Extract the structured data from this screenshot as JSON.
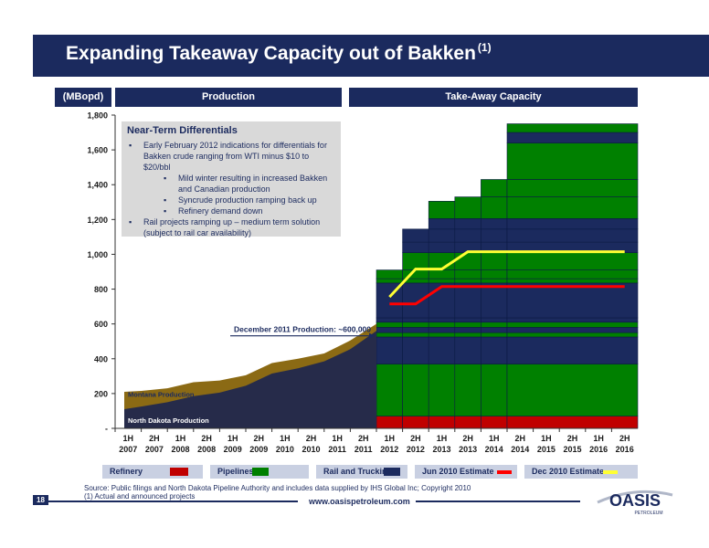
{
  "page": {
    "title": "Expanding Takeaway Capacity out of Bakken",
    "title_sup": "(1)",
    "unit_label": "(MBopd)",
    "section_production": "Production",
    "section_takeaway": "Take-Away Capacity",
    "page_number": "18",
    "website": "www.oasispetroleum.com",
    "source": "Source:  Public filings and North Dakota Pipeline Authority and includes data supplied by IHS Global Inc; Copyright 2010",
    "footnote": "(1)    Actual and announced projects",
    "logo_text": "OASIS",
    "logo_sub": "PETROLEUM"
  },
  "notes": {
    "title": "Near-Term Differentials",
    "items": [
      {
        "text": "Early February 2012 indications for differentials for",
        "level": 1,
        "bullet": true
      },
      {
        "text": "Bakken crude ranging from WTI minus $10 to",
        "level": 1,
        "bullet": false
      },
      {
        "text": "$20/bbl",
        "level": 1,
        "bullet": false
      },
      {
        "text": "Mild winter resulting in increased Bakken",
        "level": 2,
        "bullet": true
      },
      {
        "text": "and Canadian production",
        "level": 2,
        "bullet": false
      },
      {
        "text": "Syncrude production ramping back up",
        "level": 2,
        "bullet": true
      },
      {
        "text": "Refinery demand down",
        "level": 2,
        "bullet": true
      },
      {
        "text": "Rail projects ramping up – medium term solution",
        "level": 1,
        "bullet": true
      },
      {
        "text": "(subject to rail car availability)",
        "level": 1,
        "bullet": false
      }
    ]
  },
  "legend": [
    {
      "label": "Refinery",
      "color": "#c00000",
      "type": "box"
    },
    {
      "label": "Pipelines",
      "color": "#008000",
      "type": "box"
    },
    {
      "label": "Rail and Trucking",
      "color": "#1b2a5e",
      "type": "box"
    },
    {
      "label": "Jun 2010 Estimate",
      "color": "#ff0000",
      "type": "line"
    },
    {
      "label": "Dec 2010 Estimate",
      "color": "#ffff33",
      "type": "line"
    }
  ],
  "chart_data": {
    "type": "area",
    "ylim": [
      0,
      1800
    ],
    "yticks": [
      "-",
      "200",
      "400",
      "600",
      "800",
      "1,000",
      "1,200",
      "1,400",
      "1,600",
      "1,800"
    ],
    "categories": [
      [
        "1H",
        "2007"
      ],
      [
        "2H",
        "2007"
      ],
      [
        "1H",
        "2008"
      ],
      [
        "2H",
        "2008"
      ],
      [
        "1H",
        "2009"
      ],
      [
        "2H",
        "2009"
      ],
      [
        "1H",
        "2010"
      ],
      [
        "2H",
        "2010"
      ],
      [
        "1H",
        "2011"
      ],
      [
        "2H",
        "2011"
      ],
      [
        "1H",
        "2012"
      ],
      [
        "2H",
        "2012"
      ],
      [
        "1H",
        "2013"
      ],
      [
        "2H",
        "2013"
      ],
      [
        "1H",
        "2014"
      ],
      [
        "2H",
        "2014"
      ],
      [
        "1H",
        "2015"
      ],
      [
        "2H",
        "2015"
      ],
      [
        "1H",
        "2016"
      ],
      [
        "2H",
        "2016"
      ]
    ],
    "production": {
      "north_dakota": [
        110,
        125,
        150,
        185,
        205,
        245,
        315,
        345,
        385,
        455,
        560
      ],
      "montana": [
        210,
        215,
        230,
        265,
        275,
        305,
        375,
        400,
        430,
        505,
        600
      ],
      "north_dakota_label": "North Dakota Production",
      "montana_label": "Montana Production",
      "annotation": "December 2011 Production: ~600,000"
    },
    "capacity": [
      [
        [
          70,
          "#c00000"
        ],
        [
          300,
          "#008000"
        ],
        [
          155,
          "#1b2a5e"
        ],
        [
          25,
          "#008000"
        ],
        [
          30,
          "#1b2a5e"
        ],
        [
          30,
          "#008000"
        ],
        [
          25,
          "#1b2a5e"
        ],
        [
          200,
          "#1b2a5e"
        ],
        [
          25,
          "#008000"
        ],
        [
          50,
          "#008000"
        ]
      ],
      [
        [
          70,
          "#c00000"
        ],
        [
          300,
          "#008000"
        ],
        [
          155,
          "#1b2a5e"
        ],
        [
          25,
          "#008000"
        ],
        [
          30,
          "#1b2a5e"
        ],
        [
          30,
          "#008000"
        ],
        [
          25,
          "#1b2a5e"
        ],
        [
          200,
          "#1b2a5e"
        ],
        [
          25,
          "#008000"
        ],
        [
          50,
          "#008000"
        ],
        [
          100,
          "#008000"
        ],
        [
          60,
          "#1b2a5e"
        ],
        [
          75,
          "#1b2a5e"
        ]
      ],
      [
        [
          70,
          "#c00000"
        ],
        [
          300,
          "#008000"
        ],
        [
          155,
          "#1b2a5e"
        ],
        [
          25,
          "#008000"
        ],
        [
          30,
          "#1b2a5e"
        ],
        [
          30,
          "#008000"
        ],
        [
          25,
          "#1b2a5e"
        ],
        [
          200,
          "#1b2a5e"
        ],
        [
          25,
          "#008000"
        ],
        [
          50,
          "#008000"
        ],
        [
          100,
          "#008000"
        ],
        [
          60,
          "#1b2a5e"
        ],
        [
          75,
          "#1b2a5e"
        ],
        [
          60,
          "#1b2a5e"
        ],
        [
          100,
          "#008000"
        ]
      ],
      [
        [
          70,
          "#c00000"
        ],
        [
          300,
          "#008000"
        ],
        [
          155,
          "#1b2a5e"
        ],
        [
          25,
          "#008000"
        ],
        [
          30,
          "#1b2a5e"
        ],
        [
          30,
          "#008000"
        ],
        [
          25,
          "#1b2a5e"
        ],
        [
          200,
          "#1b2a5e"
        ],
        [
          25,
          "#008000"
        ],
        [
          50,
          "#008000"
        ],
        [
          100,
          "#008000"
        ],
        [
          60,
          "#1b2a5e"
        ],
        [
          75,
          "#1b2a5e"
        ],
        [
          60,
          "#1b2a5e"
        ],
        [
          125,
          "#008000"
        ]
      ],
      [
        [
          70,
          "#c00000"
        ],
        [
          300,
          "#008000"
        ],
        [
          155,
          "#1b2a5e"
        ],
        [
          25,
          "#008000"
        ],
        [
          30,
          "#1b2a5e"
        ],
        [
          30,
          "#008000"
        ],
        [
          25,
          "#1b2a5e"
        ],
        [
          200,
          "#1b2a5e"
        ],
        [
          25,
          "#008000"
        ],
        [
          50,
          "#008000"
        ],
        [
          100,
          "#008000"
        ],
        [
          60,
          "#1b2a5e"
        ],
        [
          75,
          "#1b2a5e"
        ],
        [
          60,
          "#1b2a5e"
        ],
        [
          125,
          "#008000"
        ],
        [
          100,
          "#008000"
        ]
      ],
      [
        [
          70,
          "#c00000"
        ],
        [
          300,
          "#008000"
        ],
        [
          155,
          "#1b2a5e"
        ],
        [
          25,
          "#008000"
        ],
        [
          30,
          "#1b2a5e"
        ],
        [
          30,
          "#008000"
        ],
        [
          25,
          "#1b2a5e"
        ],
        [
          200,
          "#1b2a5e"
        ],
        [
          25,
          "#008000"
        ],
        [
          50,
          "#008000"
        ],
        [
          100,
          "#008000"
        ],
        [
          60,
          "#1b2a5e"
        ],
        [
          75,
          "#1b2a5e"
        ],
        [
          60,
          "#1b2a5e"
        ],
        [
          125,
          "#008000"
        ],
        [
          100,
          "#008000"
        ],
        [
          210,
          "#008000"
        ],
        [
          60,
          "#1b2a5e"
        ],
        [
          50,
          "#008000"
        ]
      ]
    ],
    "capacity_spans": [
      [
        10,
        11
      ],
      [
        11,
        12
      ],
      [
        12,
        13
      ],
      [
        13,
        14
      ],
      [
        14,
        15
      ],
      [
        15,
        20
      ]
    ],
    "jun_2010_estimate": [
      [
        10,
        715
      ],
      [
        11,
        715
      ],
      [
        12,
        815
      ],
      [
        13,
        815
      ],
      [
        14,
        815
      ],
      [
        15,
        815
      ],
      [
        16,
        815
      ],
      [
        17,
        815
      ],
      [
        18,
        815
      ],
      [
        19,
        815
      ]
    ],
    "dec_2010_estimate": [
      [
        10,
        755
      ],
      [
        11,
        915
      ],
      [
        12,
        915
      ],
      [
        13,
        1015
      ],
      [
        14,
        1015
      ],
      [
        15,
        1015
      ],
      [
        16,
        1015
      ],
      [
        17,
        1015
      ],
      [
        18,
        1015
      ],
      [
        19,
        1015
      ]
    ]
  }
}
